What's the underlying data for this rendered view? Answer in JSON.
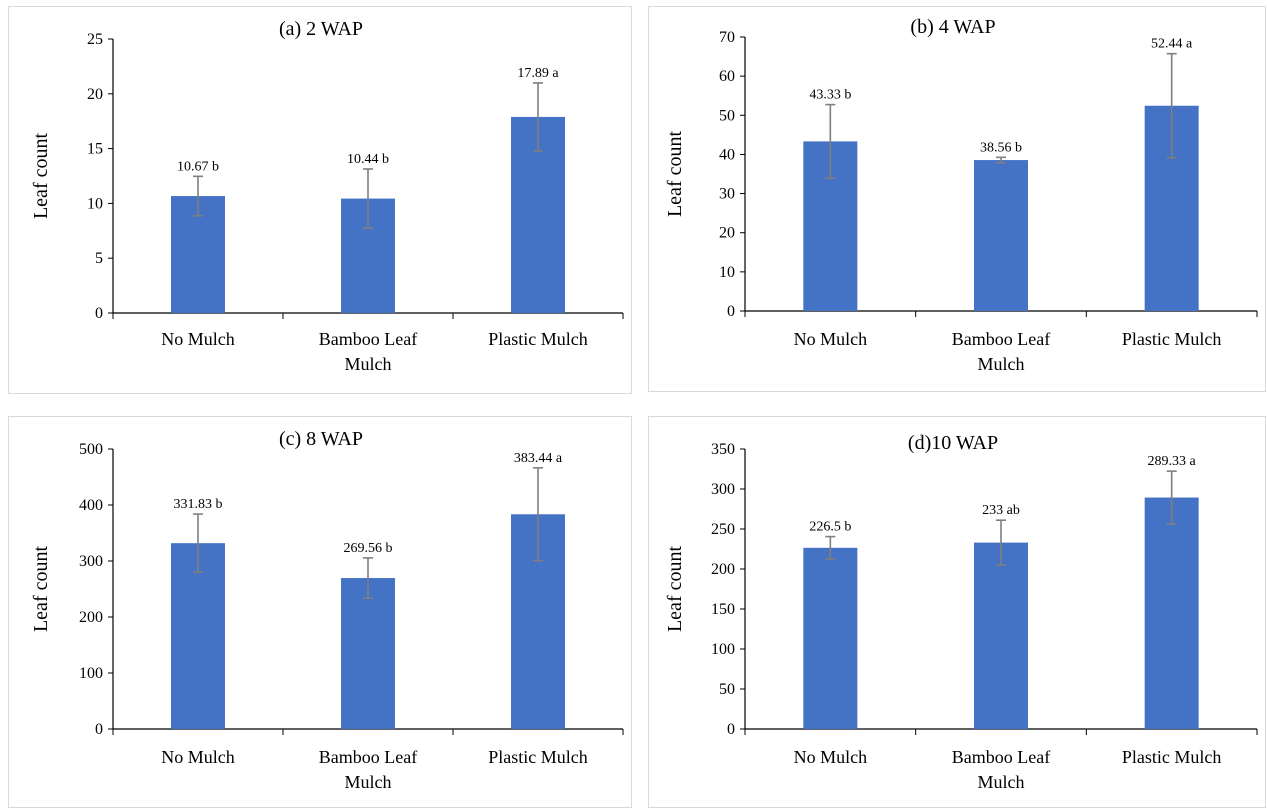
{
  "chart_data": [
    {
      "type": "bar",
      "title": "(a) 2 WAP",
      "ylabel": "Leaf count",
      "xlabel": "",
      "categories": [
        "No Mulch",
        "Bamboo Leaf Mulch",
        "Plastic Mulch"
      ],
      "category_lines": [
        [
          "No Mulch"
        ],
        [
          "Bamboo Leaf",
          "Mulch"
        ],
        [
          "Plastic Mulch"
        ]
      ],
      "values": [
        10.67,
        10.44,
        17.89
      ],
      "error": [
        1.8,
        2.7,
        3.1
      ],
      "data_labels": [
        "10.67 b",
        "10.44 b",
        "17.89 a"
      ],
      "ylim": [
        0,
        25
      ],
      "yticks": [
        0,
        5,
        10,
        15,
        20,
        25
      ],
      "grid": false,
      "bar_color": "#4472C4",
      "error_color": "#7f7f7f"
    },
    {
      "type": "bar",
      "title": "(b) 4 WAP",
      "ylabel": "Leaf count",
      "xlabel": "",
      "categories": [
        "No Mulch",
        "Bamboo Leaf Mulch",
        "Plastic Mulch"
      ],
      "category_lines": [
        [
          "No Mulch"
        ],
        [
          "Bamboo Leaf",
          "Mulch"
        ],
        [
          "Plastic Mulch"
        ]
      ],
      "values": [
        43.33,
        38.56,
        52.44
      ],
      "error": [
        9.4,
        0.7,
        13.3
      ],
      "data_labels": [
        "43.33 b",
        "38.56 b",
        "52.44 a"
      ],
      "ylim": [
        0,
        70
      ],
      "yticks": [
        0,
        10,
        20,
        30,
        40,
        50,
        60,
        70
      ],
      "grid": false,
      "bar_color": "#4472C4",
      "error_color": "#7f7f7f"
    },
    {
      "type": "bar",
      "title": "(c) 8 WAP",
      "ylabel": "Leaf count",
      "xlabel": "",
      "categories": [
        "No Mulch",
        "Bamboo Leaf Mulch",
        "Plastic Mulch"
      ],
      "category_lines": [
        [
          "No Mulch"
        ],
        [
          "Bamboo Leaf",
          "Mulch"
        ],
        [
          "Plastic Mulch"
        ]
      ],
      "values": [
        331.83,
        269.56,
        383.44
      ],
      "error": [
        52,
        36,
        83
      ],
      "data_labels": [
        "331.83 b",
        "269.56 b",
        "383.44 a"
      ],
      "ylim": [
        0,
        500
      ],
      "yticks": [
        0,
        100,
        200,
        300,
        400,
        500
      ],
      "grid": false,
      "bar_color": "#4472C4",
      "error_color": "#7f7f7f"
    },
    {
      "type": "bar",
      "title": "(d)10 WAP",
      "ylabel": "Leaf count",
      "xlabel": "",
      "categories": [
        "No Mulch",
        "Bamboo Leaf Mulch",
        "Plastic Mulch"
      ],
      "category_lines": [
        [
          "No Mulch"
        ],
        [
          "Bamboo Leaf",
          "Mulch"
        ],
        [
          "Plastic Mulch"
        ]
      ],
      "values": [
        226.5,
        233,
        289.33
      ],
      "error": [
        14,
        28,
        33
      ],
      "data_labels": [
        "226.5 b",
        "233 ab",
        "289.33 a"
      ],
      "ylim": [
        0,
        350
      ],
      "yticks": [
        0,
        50,
        100,
        150,
        200,
        250,
        300,
        350
      ],
      "grid": false,
      "bar_color": "#4472C4",
      "error_color": "#7f7f7f"
    }
  ]
}
